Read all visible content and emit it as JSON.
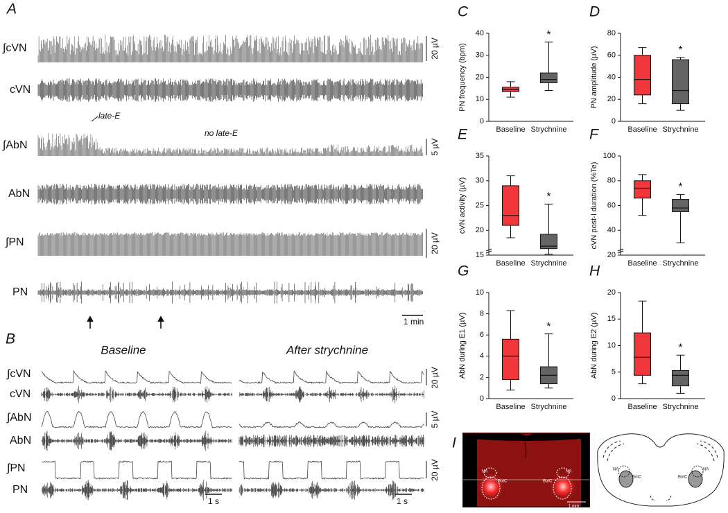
{
  "chart_data": [
    {
      "type": "box",
      "panel": "C",
      "ylabel": "PN frequency (bpm)",
      "categories": [
        "Baseline",
        "Strychnine"
      ],
      "boxes": [
        {
          "color": "#f0373c",
          "min": 11,
          "q1": 13.5,
          "median": 14.5,
          "q3": 15.5,
          "max": 18
        },
        {
          "color": "#646464",
          "min": 14,
          "q1": 17.5,
          "median": 19,
          "q3": 22,
          "max": 36
        }
      ],
      "ylim": [
        0,
        40
      ],
      "yticks": [
        0,
        10,
        20,
        30,
        40
      ],
      "annotation": "*"
    },
    {
      "type": "box",
      "panel": "D",
      "ylabel": "PN amplitude (µV)",
      "categories": [
        "Baseline",
        "Strychnine"
      ],
      "boxes": [
        {
          "color": "#f0373c",
          "min": 16,
          "q1": 24,
          "median": 38,
          "q3": 60,
          "max": 67
        },
        {
          "color": "#646464",
          "min": 10,
          "q1": 16,
          "median": 28,
          "q3": 56,
          "max": 58
        }
      ],
      "ylim": [
        0,
        80
      ],
      "yticks": [
        0,
        20,
        40,
        60,
        80
      ],
      "annotation": "*"
    },
    {
      "type": "box",
      "panel": "E",
      "ylabel": "cVN activity (µV)",
      "categories": [
        "Baseline",
        "Strychnine"
      ],
      "boxes": [
        {
          "color": "#f0373c",
          "min": 18.5,
          "q1": 21,
          "median": 23,
          "q3": 29,
          "max": 31
        },
        {
          "color": "#646464",
          "min": 15.2,
          "q1": 16.3,
          "median": 16.8,
          "q3": 19.2,
          "max": 25.3
        }
      ],
      "ylim": [
        15,
        35
      ],
      "yticks": [
        15,
        20,
        25,
        30,
        35
      ],
      "axis_break": true,
      "annotation": "*"
    },
    {
      "type": "box",
      "panel": "F",
      "ylabel": "cVN post-I duration (%Te)",
      "categories": [
        "Baseline",
        "Strychnine"
      ],
      "boxes": [
        {
          "color": "#f0373c",
          "min": 52,
          "q1": 66,
          "median": 74,
          "q3": 80,
          "max": 85
        },
        {
          "color": "#646464",
          "min": 30,
          "q1": 55,
          "median": 58,
          "q3": 65,
          "max": 69
        }
      ],
      "ylim": [
        20,
        100
      ],
      "yticks": [
        20,
        40,
        60,
        80,
        100
      ],
      "axis_break": true,
      "annotation": "*"
    },
    {
      "type": "box",
      "panel": "G",
      "ylabel": "AbN during E1 (µV)",
      "categories": [
        "Baseline",
        "Strychnine"
      ],
      "boxes": [
        {
          "color": "#f0373c",
          "min": 0.8,
          "q1": 1.8,
          "median": 4,
          "q3": 5.6,
          "max": 8.3
        },
        {
          "color": "#646464",
          "min": 1,
          "q1": 1.4,
          "median": 2.2,
          "q3": 3,
          "max": 6.1
        }
      ],
      "ylim": [
        0,
        10
      ],
      "yticks": [
        0,
        2,
        4,
        6,
        8,
        10
      ],
      "annotation": "*"
    },
    {
      "type": "box",
      "panel": "H",
      "ylabel": "AbN during E2 (µV)",
      "categories": [
        "Baseline",
        "Strychnine"
      ],
      "boxes": [
        {
          "color": "#f0373c",
          "min": 2.8,
          "q1": 4.4,
          "median": 7.8,
          "q3": 12.4,
          "max": 18.4
        },
        {
          "color": "#646464",
          "min": 1,
          "q1": 2.4,
          "median": 4.4,
          "q3": 5.3,
          "max": 8.2
        }
      ],
      "ylim": [
        0,
        20
      ],
      "yticks": [
        0,
        5,
        10,
        15,
        20
      ],
      "annotation": "*"
    }
  ],
  "panel_a": {
    "label": "A",
    "traces": [
      "∫cVN",
      "cVN",
      "∫AbN",
      "AbN",
      "∫PN",
      "PN"
    ],
    "scales": [
      "20 µV",
      "5 µV",
      "20 µV"
    ],
    "annotations": [
      "late-E",
      "no late-E"
    ],
    "time_scale": "1 min"
  },
  "panel_b": {
    "label": "B",
    "conditions": [
      "Baseline",
      "After strychnine"
    ],
    "traces": [
      "∫cVN",
      "cVN",
      "∫AbN",
      "AbN",
      "∫PN",
      "PN"
    ],
    "scales": [
      "20 µV",
      "5 µV",
      "20 µV"
    ],
    "time_scales": [
      "1 s",
      "1 s"
    ]
  },
  "panel_i": {
    "label": "I",
    "image_labels": [
      "NA",
      "BotC",
      "BotC",
      "NA"
    ],
    "scale_bar": "1 mm",
    "diagram_labels": [
      "NA",
      "BotC",
      "BotC",
      "NA"
    ]
  }
}
